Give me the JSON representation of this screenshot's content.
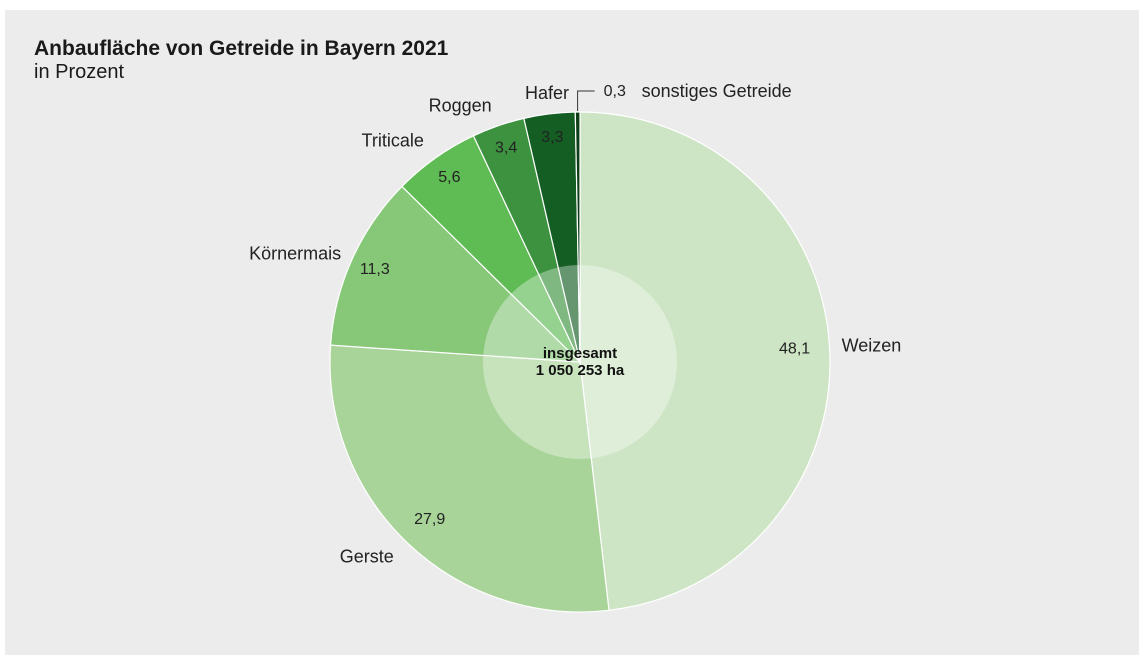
{
  "title": "Anbaufläche von Getreide in Bayern 2021",
  "subtitle": "in Prozent",
  "center": {
    "line1": "insgesamt",
    "line2": "1 050 253 ha"
  },
  "chart_data": {
    "type": "pie",
    "title": "Anbaufläche von Getreide in Bayern 2021",
    "subtitle": "in Prozent",
    "unit": "%",
    "total": "1 050 253 ha",
    "categories": [
      "Weizen",
      "Gerste",
      "Körnermais",
      "Triticale",
      "Roggen",
      "Hafer",
      "sonstiges Getreide"
    ],
    "values": [
      48.1,
      27.9,
      11.3,
      5.6,
      3.4,
      3.3,
      0.3
    ],
    "value_labels": [
      "48,1",
      "27,9",
      "11,3",
      "5,6",
      "3,4",
      "3,3",
      "0,3"
    ],
    "colors": [
      "#cde5c4",
      "#a9d499",
      "#86c778",
      "#5fbb54",
      "#3d9240",
      "#145e24",
      "#0e3e17"
    ],
    "value_label_colors": [
      "#222222",
      "#222222",
      "#222222",
      "#1a1a1a",
      "#ffffff",
      "#ffffff",
      "#222222"
    ]
  }
}
